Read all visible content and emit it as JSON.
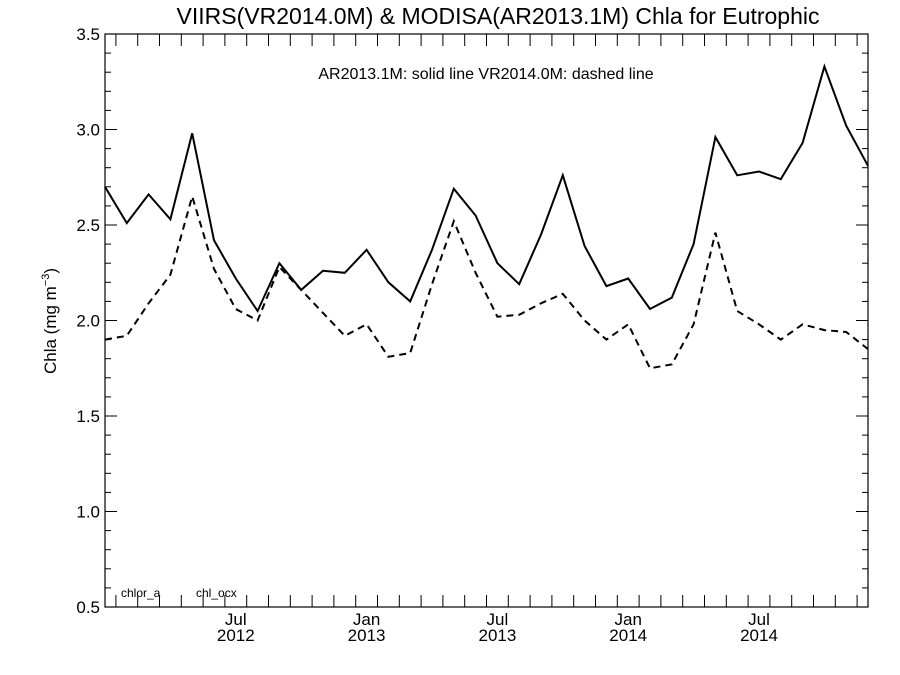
{
  "chart_data": {
    "type": "line",
    "title": "VIIRS(VR2014.0M) & MODISA(AR2013.1M)  Chla for Eutrophic",
    "ylabel": "Chla (mg m",
    "ylabel_sup": "−3",
    "ylabel_close": ")",
    "ylim": [
      0.5,
      3.5
    ],
    "y_ticks": [
      "0.5",
      "1.0",
      "1.5",
      "2.0",
      "2.5",
      "3.0",
      "3.5"
    ],
    "x_tick_labels": [
      {
        "month": "Jul",
        "year": "2012"
      },
      {
        "month": "Jan",
        "year": "2013"
      },
      {
        "month": "Jul",
        "year": "2013"
      },
      {
        "month": "Jan",
        "year": "2014"
      },
      {
        "month": "Jul",
        "year": "2014"
      }
    ],
    "annotation": "AR2013.1M: solid line   VR2014.0M: dashed line",
    "corner_labels": [
      "chlor_a",
      "chl_ocx"
    ],
    "x_months": [
      "2012-01",
      "2012-02",
      "2012-03",
      "2012-04",
      "2012-05",
      "2012-06",
      "2012-07",
      "2012-08",
      "2012-09",
      "2012-10",
      "2012-11",
      "2012-12",
      "2013-01",
      "2013-02",
      "2013-03",
      "2013-04",
      "2013-05",
      "2013-06",
      "2013-07",
      "2013-08",
      "2013-09",
      "2013-10",
      "2013-11",
      "2013-12",
      "2014-01",
      "2014-02",
      "2014-03",
      "2014-04",
      "2014-05",
      "2014-06",
      "2014-07",
      "2014-08",
      "2014-09",
      "2014-10",
      "2014-11",
      "2014-12"
    ],
    "series": [
      {
        "style": "solid",
        "values": [
          2.7,
          2.51,
          2.66,
          2.53,
          2.98,
          2.42,
          2.22,
          2.05,
          2.3,
          2.16,
          2.26,
          2.25,
          2.37,
          2.2,
          2.1,
          2.37,
          2.69,
          2.55,
          2.3,
          2.19,
          2.45,
          2.76,
          2.39,
          2.18,
          2.22,
          2.06,
          2.12,
          2.4,
          2.96,
          2.76,
          2.78,
          2.74,
          2.93,
          3.33,
          3.02,
          2.81
        ]
      },
      {
        "style": "dashed",
        "values": [
          1.9,
          1.92,
          2.09,
          2.24,
          2.65,
          2.27,
          2.06,
          2.0,
          2.28,
          2.16,
          2.04,
          1.92,
          1.98,
          1.81,
          1.83,
          2.19,
          2.52,
          2.25,
          2.02,
          2.03,
          2.09,
          2.14,
          2.0,
          1.9,
          1.98,
          1.75,
          1.77,
          1.98,
          2.46,
          2.05,
          1.98,
          1.9,
          1.98,
          1.95,
          1.94,
          1.85
        ]
      }
    ]
  }
}
